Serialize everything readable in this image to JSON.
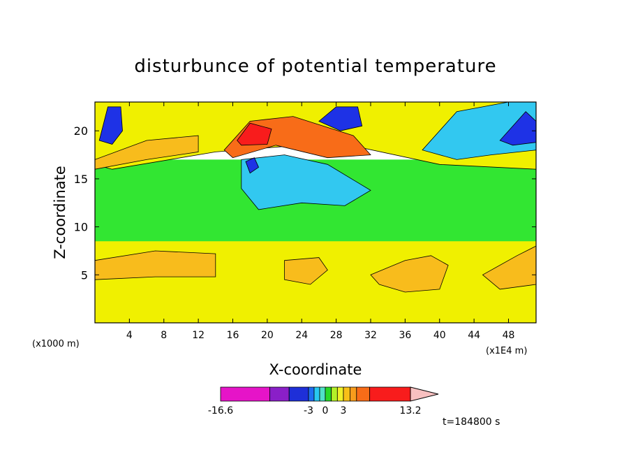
{
  "chart_data": {
    "type": "heatmap",
    "title": "disturbunce of potential temperature",
    "xlabel": "X-coordinate",
    "ylabel": "Z-coordinate",
    "x_unit_label": "(x1000 m)",
    "x_scale_label": "(x1E4 m)",
    "xlim": [
      0,
      51.2
    ],
    "ylim": [
      0,
      23
    ],
    "x_ticks": [
      "4",
      "8",
      "12",
      "16",
      "20",
      "24",
      "28",
      "32",
      "36",
      "40",
      "44",
      "48"
    ],
    "x_tick_values": [
      4,
      8,
      12,
      16,
      20,
      24,
      28,
      32,
      36,
      40,
      44,
      48
    ],
    "y_ticks": [
      "5",
      "10",
      "15",
      "20"
    ],
    "y_tick_values": [
      5,
      10,
      15,
      20
    ],
    "time_label": "t=184800 s",
    "colorbar": {
      "labels": [
        "-16.6",
        "-3",
        "0",
        "3",
        "13.2"
      ],
      "levels": [
        -16.6,
        -9,
        -6,
        -3,
        -2,
        -1,
        0,
        1,
        2,
        3,
        4,
        5,
        7,
        13.2
      ],
      "colors": [
        "#e614c8",
        "#8a1fc8",
        "#1e2fd8",
        "#1e6ef0",
        "#28c8f0",
        "#50e0c8",
        "#28d828",
        "#b4f028",
        "#f0f028",
        "#f8c018",
        "#f89c1c",
        "#f86c18",
        "#f81c1c",
        "#f8807c",
        "#f8c0c0"
      ]
    },
    "regions": [
      {
        "color": "#f0f000",
        "polygon": [
          [
            0,
            0
          ],
          [
            51.2,
            0
          ],
          [
            51.2,
            9
          ],
          [
            0,
            9
          ]
        ]
      },
      {
        "color": "#32e632",
        "polygon": [
          [
            0,
            8.5
          ],
          [
            51.2,
            8.5
          ],
          [
            51.2,
            17
          ],
          [
            0,
            17
          ]
        ]
      },
      {
        "color": "#f8bc1c",
        "polygon": [
          [
            0,
            6.5
          ],
          [
            7,
            7.5
          ],
          [
            14,
            7.2
          ],
          [
            14,
            4.8
          ],
          [
            7,
            4.8
          ],
          [
            0,
            4.5
          ]
        ]
      },
      {
        "color": "#f8bc1c",
        "polygon": [
          [
            22,
            6.5
          ],
          [
            26,
            6.8
          ],
          [
            27,
            5.5
          ],
          [
            25,
            4
          ],
          [
            22,
            4.5
          ]
        ]
      },
      {
        "color": "#f8bc1c",
        "polygon": [
          [
            32,
            5
          ],
          [
            36,
            6.5
          ],
          [
            39,
            7
          ],
          [
            41,
            6
          ],
          [
            40,
            3.5
          ],
          [
            36,
            3.2
          ],
          [
            33,
            4
          ]
        ]
      },
      {
        "color": "#f8bc1c",
        "polygon": [
          [
            45,
            5
          ],
          [
            49,
            7
          ],
          [
            51.2,
            8
          ],
          [
            51.2,
            4
          ],
          [
            47,
            3.5
          ]
        ]
      },
      {
        "color": "#f0f000",
        "polygon": [
          [
            2,
            16
          ],
          [
            14,
            17.8
          ],
          [
            28,
            18.8
          ],
          [
            40,
            16.5
          ],
          [
            51.2,
            16
          ],
          [
            51.2,
            23
          ],
          [
            0,
            23
          ],
          [
            0,
            16.5
          ]
        ]
      },
      {
        "color": "#f8bc1c",
        "polygon": [
          [
            0,
            17
          ],
          [
            6,
            19
          ],
          [
            12,
            19.5
          ],
          [
            12,
            17.8
          ],
          [
            6,
            17
          ],
          [
            0,
            16
          ]
        ]
      },
      {
        "color": "#32c8f0",
        "polygon": [
          [
            17,
            17
          ],
          [
            22,
            17.5
          ],
          [
            27,
            16.5
          ],
          [
            32,
            13.8
          ],
          [
            29,
            12.2
          ],
          [
            24,
            12.5
          ],
          [
            19,
            11.8
          ],
          [
            17,
            14
          ]
        ]
      },
      {
        "color": "#f86c18",
        "polygon": [
          [
            15,
            18
          ],
          [
            18,
            21
          ],
          [
            23,
            21.5
          ],
          [
            30,
            19.5
          ],
          [
            32,
            17.5
          ],
          [
            27,
            17.2
          ],
          [
            21,
            18.5
          ],
          [
            16,
            17.2
          ]
        ]
      },
      {
        "color": "#f81c1c",
        "polygon": [
          [
            16.5,
            19
          ],
          [
            18,
            20.8
          ],
          [
            20.5,
            20.2
          ],
          [
            20,
            18.6
          ],
          [
            17,
            18.5
          ]
        ]
      },
      {
        "color": "#32c8f0",
        "polygon": [
          [
            38,
            18
          ],
          [
            42,
            22
          ],
          [
            48,
            23
          ],
          [
            51.2,
            23
          ],
          [
            51.2,
            18
          ],
          [
            46,
            17.5
          ],
          [
            42,
            17
          ]
        ]
      },
      {
        "color": "#1e32e6",
        "polygon": [
          [
            47,
            19
          ],
          [
            50,
            22
          ],
          [
            51.2,
            21
          ],
          [
            51.2,
            18.8
          ],
          [
            48.5,
            18.5
          ]
        ]
      },
      {
        "color": "#1e32e6",
        "polygon": [
          [
            0.5,
            19
          ],
          [
            1.5,
            22.5
          ],
          [
            3,
            22.5
          ],
          [
            3.2,
            20
          ],
          [
            2,
            18.6
          ]
        ]
      },
      {
        "color": "#1e32e6",
        "polygon": [
          [
            26,
            21
          ],
          [
            28,
            22.5
          ],
          [
            30.5,
            22.5
          ],
          [
            31,
            20.5
          ],
          [
            28.5,
            20
          ]
        ]
      },
      {
        "color": "#1e32e6",
        "polygon": [
          [
            17.5,
            16.8
          ],
          [
            18.5,
            17.2
          ],
          [
            19,
            16.2
          ],
          [
            18,
            15.6
          ]
        ]
      }
    ]
  }
}
